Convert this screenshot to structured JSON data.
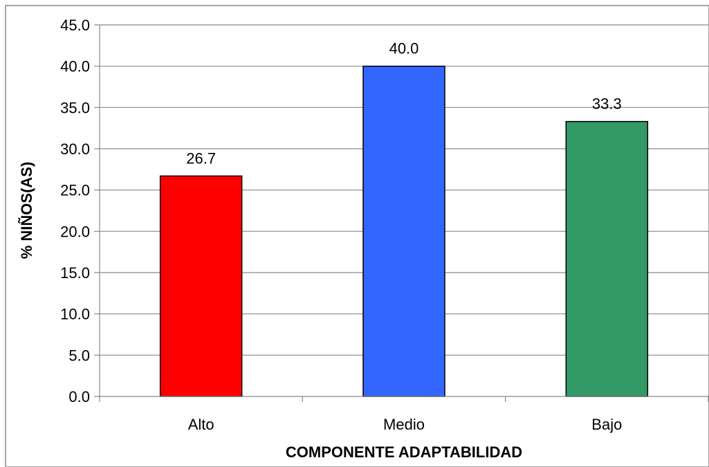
{
  "chart_data": {
    "type": "bar",
    "title": "",
    "xlabel": "COMPONENTE ADAPTABILIDAD",
    "ylabel": "% NIÑOS(AS)",
    "categories": [
      "Alto",
      "Medio",
      "Bajo"
    ],
    "values": [
      26.7,
      40.0,
      33.3
    ],
    "data_labels": [
      "26.7",
      "40.0",
      "33.3"
    ],
    "colors": [
      "#ff0000",
      "#3366ff",
      "#339966"
    ],
    "ylim": [
      0,
      45
    ],
    "yticks": [
      0,
      5,
      10,
      15,
      20,
      25,
      30,
      35,
      40,
      45
    ],
    "ytick_labels": [
      "0.0",
      "5.0",
      "10.0",
      "15.0",
      "20.0",
      "25.0",
      "30.0",
      "35.0",
      "40.0",
      "45.0"
    ],
    "grid": true,
    "legend": "none"
  }
}
